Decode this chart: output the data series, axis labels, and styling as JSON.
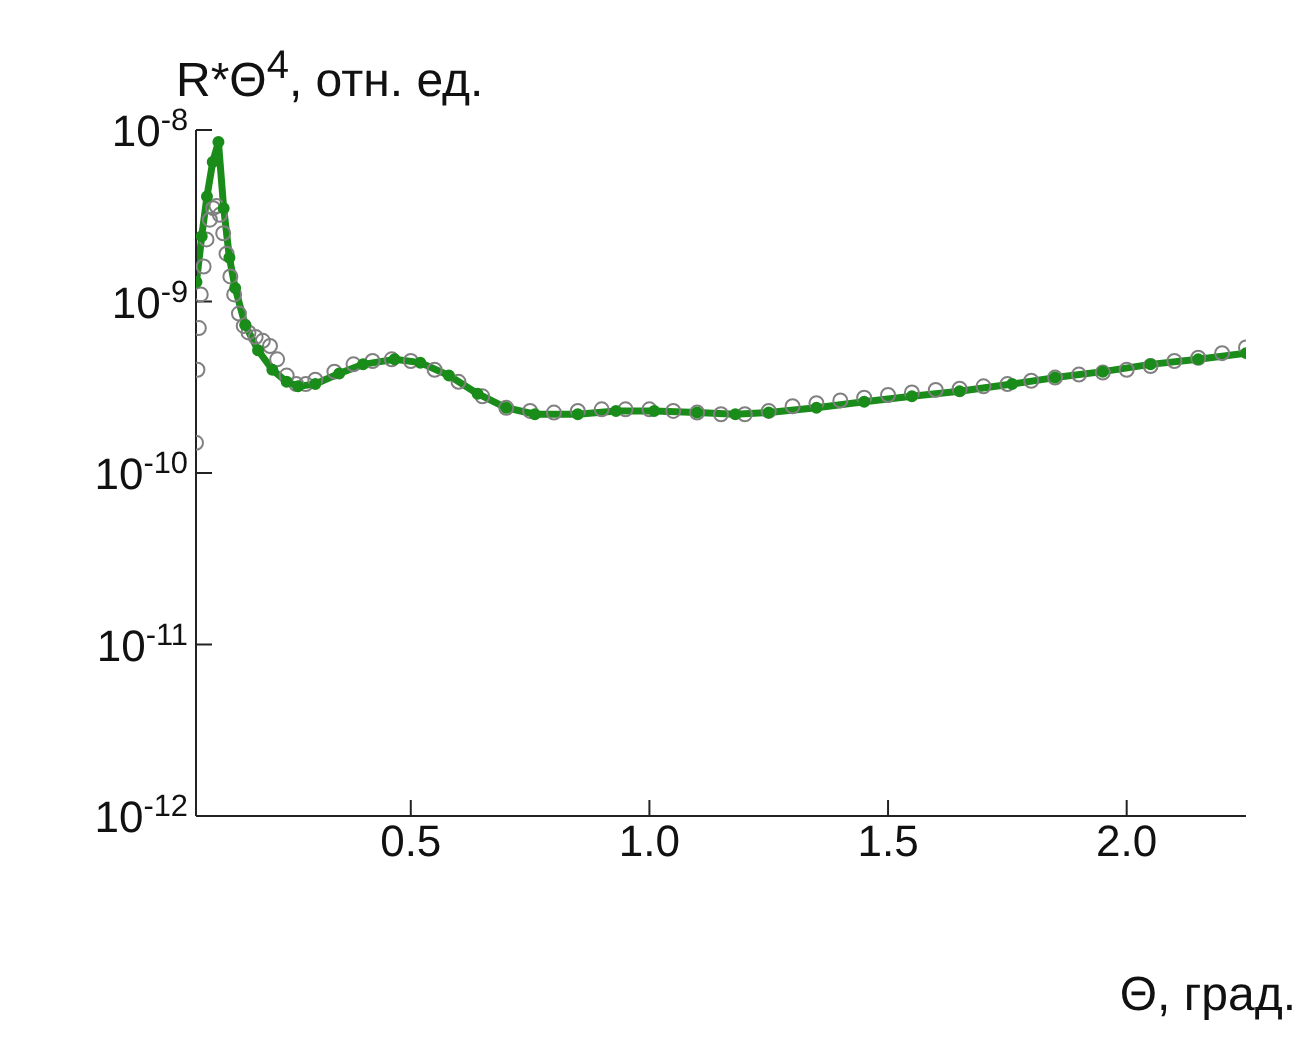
{
  "chart_data": {
    "type": "line",
    "xlabel": "Θ, град.",
    "ylabel": "R*Θ$^{4}$, отн. ед.",
    "log": "y",
    "xlim": [
      0.05,
      2.25
    ],
    "xticks": [
      0.5,
      {
        "value": 1,
        "label": "1.0"
      },
      1.5,
      {
        "value": 2,
        "label": "2.0"
      }
    ],
    "ylim": [
      1e-12,
      1e-08
    ],
    "yticks": [
      {
        "value": 1e-12,
        "label": "10$^{-12}$"
      },
      {
        "value": 1e-11,
        "label": "10$^{-11}$"
      },
      {
        "value": 1e-10,
        "label": "10$^{-10}$"
      },
      {
        "value": 1e-09,
        "label": "10$^{-9}$"
      },
      {
        "value": 1e-08,
        "label": "10$^{-8}$"
      }
    ],
    "series": [
      {
        "type": "scatter",
        "color": "#808080",
        "marker": "circle",
        "x": [
          0.05,
          0.053,
          0.056,
          0.06,
          0.066,
          0.072,
          0.079,
          0.086,
          0.093,
          0.1,
          0.107,
          0.114,
          0.122,
          0.13,
          0.14,
          0.15,
          0.16,
          0.175,
          0.19,
          0.205,
          0.22,
          0.24,
          0.26,
          0.28,
          0.3,
          0.34,
          0.38,
          0.42,
          0.46,
          0.5,
          0.55,
          0.6,
          0.65,
          0.7,
          0.75,
          0.8,
          0.85,
          0.9,
          0.95,
          1.0,
          1.05,
          1.1,
          1.15,
          1.2,
          1.25,
          1.3,
          1.35,
          1.4,
          1.45,
          1.5,
          1.55,
          1.6,
          1.65,
          1.7,
          1.75,
          1.8,
          1.85,
          1.9,
          1.95,
          2.0,
          2.05,
          2.1,
          2.15,
          2.2,
          2.25
        ],
        "values": [
          1.5e-10,
          4e-10,
          7e-10,
          1.1e-09,
          1.6e-09,
          2.3e-09,
          3e-09,
          3.5e-09,
          3.6e-09,
          3.2e-09,
          2.5e-09,
          1.9e-09,
          1.4e-09,
          1.1e-09,
          8.5e-10,
          7.2e-10,
          6.6e-10,
          6.2e-10,
          5.9e-10,
          5.5e-10,
          4.6e-10,
          3.7e-10,
          3.3e-10,
          3.3e-10,
          3.5e-10,
          3.9e-10,
          4.3e-10,
          4.5e-10,
          4.6e-10,
          4.5e-10,
          4e-10,
          3.4e-10,
          2.8e-10,
          2.4e-10,
          2.3e-10,
          2.25e-10,
          2.3e-10,
          2.35e-10,
          2.35e-10,
          2.35e-10,
          2.3e-10,
          2.25e-10,
          2.2e-10,
          2.2e-10,
          2.3e-10,
          2.45e-10,
          2.55e-10,
          2.65e-10,
          2.75e-10,
          2.85e-10,
          2.95e-10,
          3.05e-10,
          3.1e-10,
          3.2e-10,
          3.3e-10,
          3.45e-10,
          3.6e-10,
          3.75e-10,
          3.85e-10,
          4e-10,
          4.2e-10,
          4.5e-10,
          4.7e-10,
          5e-10,
          5.4e-10
        ]
      },
      {
        "color": "#1a8c1a",
        "marker": "circle",
        "x": [
          0.051,
          0.062,
          0.073,
          0.085,
          0.097,
          0.108,
          0.12,
          0.132,
          0.153,
          0.18,
          0.21,
          0.24,
          0.264,
          0.3,
          0.35,
          0.4,
          0.466,
          0.52,
          0.58,
          0.64,
          0.7,
          0.76,
          0.85,
          0.93,
          1.01,
          1.1,
          1.18,
          1.25,
          1.35,
          1.45,
          1.55,
          1.65,
          1.76,
          1.85,
          1.95,
          2.05,
          2.15,
          2.25
        ],
        "values": [
          1.3e-09,
          2.4e-09,
          4.1e-09,
          6.5e-09,
          8.5e-09,
          3.5e-09,
          1.8e-09,
          1.2e-09,
          7.3e-10,
          5.2e-10,
          4e-10,
          3.4e-10,
          3.2e-10,
          3.3e-10,
          3.8e-10,
          4.3e-10,
          4.6e-10,
          4.4e-10,
          3.7e-10,
          2.9e-10,
          2.4e-10,
          2.2e-10,
          2.2e-10,
          2.3e-10,
          2.3e-10,
          2.25e-10,
          2.2e-10,
          2.25e-10,
          2.4e-10,
          2.6e-10,
          2.8e-10,
          3e-10,
          3.3e-10,
          3.6e-10,
          3.9e-10,
          4.3e-10,
          4.6e-10,
          5e-10
        ]
      }
    ]
  }
}
